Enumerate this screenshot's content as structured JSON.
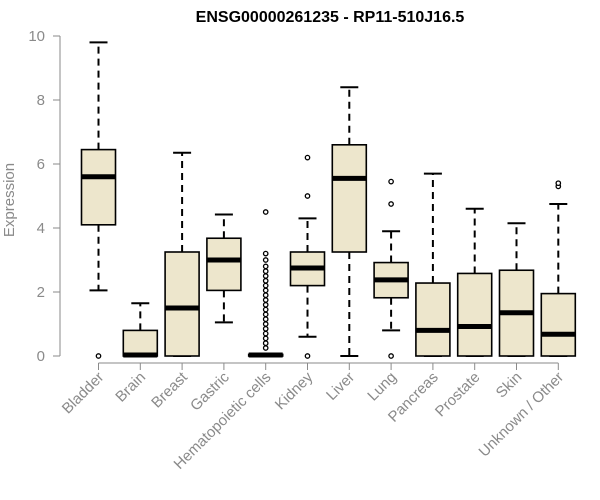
{
  "chart_data": {
    "type": "boxplot",
    "title": "ENSG00000261235 - RP11-510J16.5",
    "xlabel": "",
    "ylabel": "Expression",
    "ylim": [
      0,
      10
    ],
    "yticks": [
      0,
      2,
      4,
      6,
      8,
      10
    ],
    "grid": false,
    "legend": "none",
    "colors": {
      "box_fill": "#ede6cc",
      "stroke": "#000000",
      "axis": "#8a8a8a"
    },
    "categories": [
      "Bladder",
      "Brain",
      "Breast",
      "Gastric",
      "Hematopoietic cells",
      "Kidney",
      "Liver",
      "Lung",
      "Pancreas",
      "Prostate",
      "Skin",
      "Unknown / Other"
    ],
    "boxes": [
      {
        "category": "Bladder",
        "min": 2.05,
        "q1": 4.1,
        "median": 5.6,
        "q3": 6.45,
        "max": 9.8,
        "outliers": [
          0.0
        ]
      },
      {
        "category": "Brain",
        "min": 0.0,
        "q1": 0.0,
        "median": 0.03,
        "q3": 0.8,
        "max": 1.65,
        "outliers": []
      },
      {
        "category": "Breast",
        "min": 0.0,
        "q1": 0.0,
        "median": 1.5,
        "q3": 3.25,
        "max": 6.35,
        "outliers": []
      },
      {
        "category": "Gastric",
        "min": 1.05,
        "q1": 2.05,
        "median": 3.0,
        "q3": 3.68,
        "max": 4.42,
        "outliers": []
      },
      {
        "category": "Hematopoietic cells",
        "min": 0.0,
        "q1": 0.0,
        "median": 0.03,
        "q3": 0.05,
        "max": 0.08,
        "outliers": [
          0.25,
          0.4,
          0.55,
          0.7,
          0.85,
          1.0,
          1.15,
          1.3,
          1.45,
          1.6,
          1.75,
          1.9,
          2.05,
          2.2,
          2.35,
          2.5,
          2.65,
          2.8,
          3.0,
          3.2,
          4.5
        ]
      },
      {
        "category": "Kidney",
        "min": 0.6,
        "q1": 2.2,
        "median": 2.75,
        "q3": 3.25,
        "max": 4.3,
        "outliers": [
          0.0,
          5.0,
          6.2
        ]
      },
      {
        "category": "Liver",
        "min": 0.0,
        "q1": 3.25,
        "median": 5.55,
        "q3": 6.6,
        "max": 8.4,
        "outliers": []
      },
      {
        "category": "Lung",
        "min": 0.8,
        "q1": 1.82,
        "median": 2.38,
        "q3": 2.92,
        "max": 3.9,
        "outliers": [
          0.0,
          4.75,
          5.45
        ]
      },
      {
        "category": "Pancreas",
        "min": 0.0,
        "q1": 0.0,
        "median": 0.8,
        "q3": 2.28,
        "max": 5.7,
        "outliers": []
      },
      {
        "category": "Prostate",
        "min": 0.0,
        "q1": 0.0,
        "median": 0.92,
        "q3": 2.58,
        "max": 4.6,
        "outliers": []
      },
      {
        "category": "Skin",
        "min": 0.0,
        "q1": 0.0,
        "median": 1.35,
        "q3": 2.68,
        "max": 4.15,
        "outliers": []
      },
      {
        "category": "Unknown / Other",
        "min": 0.0,
        "q1": 0.0,
        "median": 0.68,
        "q3": 1.95,
        "max": 4.75,
        "outliers": [
          5.3,
          5.4
        ]
      }
    ]
  }
}
